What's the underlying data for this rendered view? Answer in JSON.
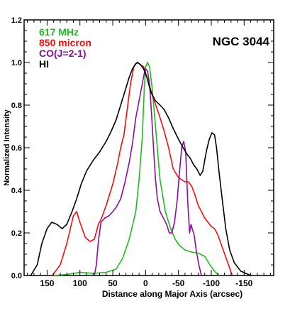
{
  "chart_data": {
    "type": "line",
    "title": "NGC 3044",
    "xlabel": "Distance along Major Axis (arcsec)",
    "ylabel": "Normalized Intensity",
    "xlim": [
      185,
      -195
    ],
    "ylim": [
      0,
      1.2
    ],
    "x_axis_direction": "reversed",
    "grid": false,
    "legend_position": "top-left",
    "xticks": [
      150,
      100,
      50,
      0,
      -50,
      -100,
      -150
    ],
    "xtick_labels": [
      "150",
      "100",
      "50",
      "0",
      "-50",
      "-100",
      "-150"
    ],
    "yticks": [
      0.0,
      0.2,
      0.4,
      0.6,
      0.8,
      1.0,
      1.2
    ],
    "ytick_labels": [
      "0.0",
      "0.2",
      "0.4",
      "0.6",
      "0.8",
      "1.0",
      "1.2"
    ],
    "series": [
      {
        "name": "617 MHz",
        "color": "#22bb22",
        "points": [
          [
            140,
            0.0
          ],
          [
            120,
            0.005
          ],
          [
            100,
            0.015
          ],
          [
            80,
            0.01
          ],
          [
            60,
            0.015
          ],
          [
            45,
            0.03
          ],
          [
            35,
            0.08
          ],
          [
            25,
            0.17
          ],
          [
            15,
            0.3
          ],
          [
            10,
            0.45
          ],
          [
            5,
            0.65
          ],
          [
            2,
            0.88
          ],
          [
            0,
            0.98
          ],
          [
            -3,
            1.0
          ],
          [
            -6,
            0.98
          ],
          [
            -10,
            0.88
          ],
          [
            -15,
            0.7
          ],
          [
            -22,
            0.45
          ],
          [
            -30,
            0.3
          ],
          [
            -38,
            0.22
          ],
          [
            -45,
            0.17
          ],
          [
            -52,
            0.14
          ],
          [
            -60,
            0.12
          ],
          [
            -70,
            0.11
          ],
          [
            -80,
            0.105
          ],
          [
            -90,
            0.09
          ],
          [
            -98,
            0.05
          ],
          [
            -105,
            0.02
          ],
          [
            -112,
            0.0
          ]
        ]
      },
      {
        "name": "850 micron",
        "color": "#ee1111",
        "points": [
          [
            142,
            0.0
          ],
          [
            130,
            0.05
          ],
          [
            120,
            0.15
          ],
          [
            110,
            0.28
          ],
          [
            105,
            0.3
          ],
          [
            100,
            0.25
          ],
          [
            92,
            0.18
          ],
          [
            85,
            0.16
          ],
          [
            78,
            0.17
          ],
          [
            72,
            0.24
          ],
          [
            67,
            0.27
          ],
          [
            60,
            0.33
          ],
          [
            50,
            0.43
          ],
          [
            43,
            0.52
          ],
          [
            38,
            0.6
          ],
          [
            33,
            0.66
          ],
          [
            28,
            0.78
          ],
          [
            23,
            0.9
          ],
          [
            18,
            0.98
          ],
          [
            13,
            1.0
          ],
          [
            8,
            0.99
          ],
          [
            3,
            0.98
          ],
          [
            -5,
            0.9
          ],
          [
            -12,
            0.83
          ],
          [
            -20,
            0.76
          ],
          [
            -28,
            0.68
          ],
          [
            -35,
            0.6
          ],
          [
            -42,
            0.5
          ],
          [
            -50,
            0.46
          ],
          [
            -55,
            0.45
          ],
          [
            -60,
            0.44
          ],
          [
            -65,
            0.44
          ],
          [
            -70,
            0.42
          ],
          [
            -75,
            0.38
          ],
          [
            -80,
            0.33
          ],
          [
            -85,
            0.3
          ],
          [
            -90,
            0.27
          ],
          [
            -95,
            0.25
          ],
          [
            -100,
            0.23
          ],
          [
            -105,
            0.22
          ],
          [
            -110,
            0.19
          ],
          [
            -117,
            0.13
          ],
          [
            -125,
            0.06
          ],
          [
            -132,
            0.0
          ]
        ]
      },
      {
        "name": "CO(J=2-1)",
        "color": "#881199",
        "points": [
          [
            78,
            0.0
          ],
          [
            75,
            0.05
          ],
          [
            72,
            0.16
          ],
          [
            68,
            0.25
          ],
          [
            62,
            0.27
          ],
          [
            56,
            0.28
          ],
          [
            50,
            0.3
          ],
          [
            45,
            0.32
          ],
          [
            38,
            0.36
          ],
          [
            32,
            0.43
          ],
          [
            25,
            0.53
          ],
          [
            20,
            0.62
          ],
          [
            15,
            0.74
          ],
          [
            10,
            0.82
          ],
          [
            5,
            0.9
          ],
          [
            2,
            0.95
          ],
          [
            0,
            0.97
          ],
          [
            -3,
            0.96
          ],
          [
            -6,
            0.9
          ],
          [
            -9,
            0.76
          ],
          [
            -12,
            0.6
          ],
          [
            -15,
            0.45
          ],
          [
            -18,
            0.36
          ],
          [
            -22,
            0.3
          ],
          [
            -27,
            0.27
          ],
          [
            -32,
            0.24
          ],
          [
            -36,
            0.2
          ],
          [
            -40,
            0.2
          ],
          [
            -44,
            0.25
          ],
          [
            -48,
            0.35
          ],
          [
            -52,
            0.5
          ],
          [
            -55,
            0.6
          ],
          [
            -58,
            0.63
          ],
          [
            -61,
            0.58
          ],
          [
            -64,
            0.35
          ],
          [
            -67,
            0.2
          ],
          [
            -69,
            0.24
          ],
          [
            -71,
            0.22
          ],
          [
            -74,
            0.19
          ],
          [
            -77,
            0.12
          ],
          [
            -81,
            0.05
          ],
          [
            -85,
            0.0
          ]
        ]
      },
      {
        "name": "HI",
        "color": "#000000",
        "points": [
          [
            175,
            0.0
          ],
          [
            165,
            0.05
          ],
          [
            158,
            0.15
          ],
          [
            150,
            0.22
          ],
          [
            143,
            0.25
          ],
          [
            135,
            0.24
          ],
          [
            127,
            0.22
          ],
          [
            120,
            0.24
          ],
          [
            112,
            0.3
          ],
          [
            105,
            0.36
          ],
          [
            98,
            0.43
          ],
          [
            90,
            0.49
          ],
          [
            80,
            0.54
          ],
          [
            70,
            0.58
          ],
          [
            60,
            0.63
          ],
          [
            52,
            0.68
          ],
          [
            45,
            0.73
          ],
          [
            38,
            0.8
          ],
          [
            30,
            0.88
          ],
          [
            25,
            0.93
          ],
          [
            20,
            0.97
          ],
          [
            15,
            0.995
          ],
          [
            12,
            1.0
          ],
          [
            8,
            0.99
          ],
          [
            3,
            0.97
          ],
          [
            -2,
            0.93
          ],
          [
            -8,
            0.86
          ],
          [
            -15,
            0.82
          ],
          [
            -22,
            0.8
          ],
          [
            -28,
            0.78
          ],
          [
            -35,
            0.74
          ],
          [
            -42,
            0.69
          ],
          [
            -50,
            0.64
          ],
          [
            -57,
            0.6
          ],
          [
            -63,
            0.57
          ],
          [
            -68,
            0.55
          ],
          [
            -73,
            0.52
          ],
          [
            -78,
            0.5
          ],
          [
            -83,
            0.47
          ],
          [
            -87,
            0.49
          ],
          [
            -90,
            0.54
          ],
          [
            -93,
            0.59
          ],
          [
            -97,
            0.64
          ],
          [
            -101,
            0.67
          ],
          [
            -105,
            0.66
          ],
          [
            -108,
            0.6
          ],
          [
            -112,
            0.48
          ],
          [
            -117,
            0.35
          ],
          [
            -122,
            0.22
          ],
          [
            -128,
            0.12
          ],
          [
            -135,
            0.06
          ],
          [
            -145,
            0.02
          ],
          [
            -160,
            0.0
          ]
        ]
      }
    ]
  }
}
